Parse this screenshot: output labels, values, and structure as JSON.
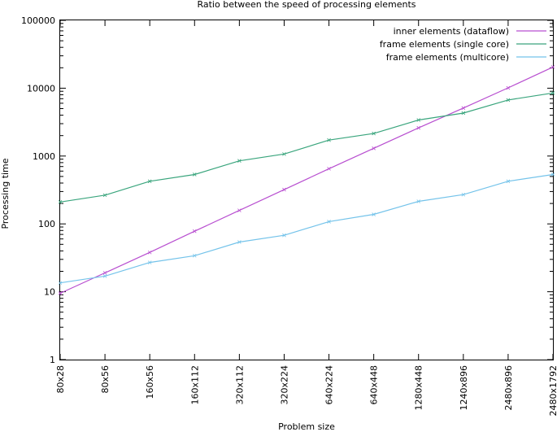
{
  "chart_data": {
    "type": "line",
    "title": "Ratio between the speed of processing elements",
    "xlabel": "Problem size",
    "ylabel": "Processing time",
    "y_scale": "log",
    "ylim": [
      1,
      100000
    ],
    "y_ticks": [
      {
        "value": 1,
        "label": "1"
      },
      {
        "value": 10,
        "label": "10"
      },
      {
        "value": 100,
        "label": "100"
      },
      {
        "value": 1000,
        "label": "1000"
      },
      {
        "value": 10000,
        "label": "10000"
      },
      {
        "value": 100000,
        "label": "100000"
      }
    ],
    "categories": [
      "80x28",
      "80x56",
      "160x56",
      "160x112",
      "320x112",
      "320x224",
      "640x224",
      "640x448",
      "1280x448",
      "1240x896",
      "2480x896",
      "2480x1792"
    ],
    "grid": false,
    "legend_position": "top-right",
    "series": [
      {
        "name": "inner elements (dataflow)",
        "color": "#b84fd0",
        "values": [
          9.5,
          19,
          38,
          78,
          158,
          320,
          650,
          1300,
          2600,
          5100,
          10100,
          20500
        ]
      },
      {
        "name": "frame elements (single core)",
        "color": "#3aa57d",
        "values": [
          210,
          265,
          425,
          535,
          850,
          1070,
          1720,
          2150,
          3400,
          4300,
          6700,
          8500
        ]
      },
      {
        "name": "frame elements (multicore)",
        "color": "#74c3ea",
        "values": [
          13.5,
          17,
          27,
          34,
          54,
          68,
          108,
          138,
          215,
          270,
          425,
          535
        ]
      }
    ]
  }
}
